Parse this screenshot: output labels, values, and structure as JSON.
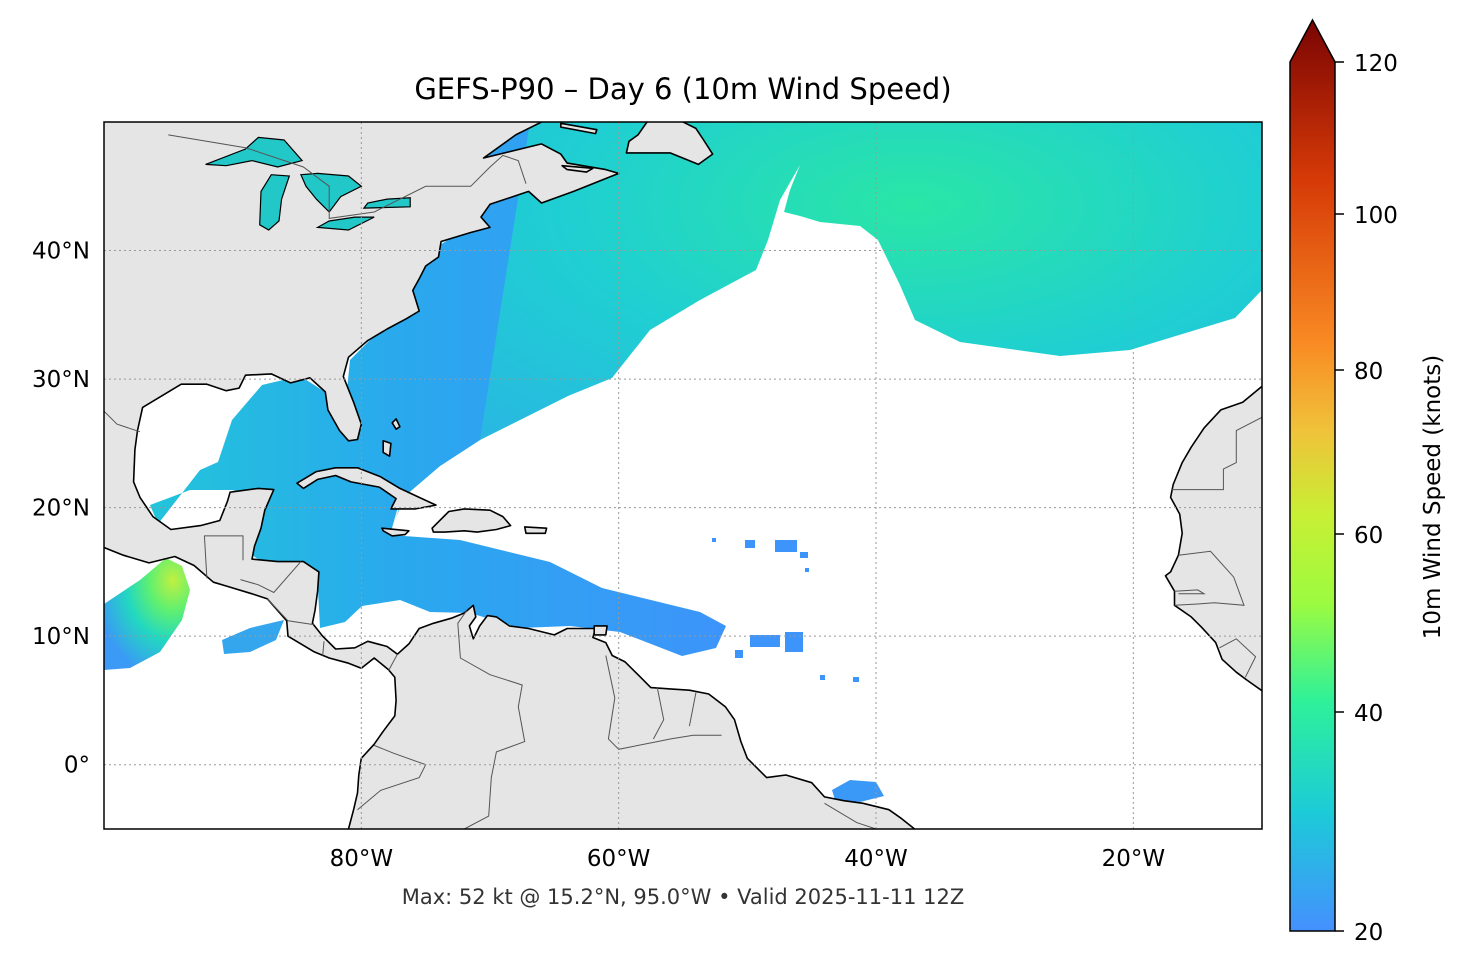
{
  "chart_data": {
    "type": "heatmap",
    "title": "GEFS-P90 – Day 6 (10m Wind Speed)",
    "footer": "Max: 52 kt @ 15.2°N, 95.0°W • Valid 2025-11-11 12Z",
    "projection": "PlateCarree",
    "lon_range": [
      -100,
      -10
    ],
    "lat_range": [
      -5,
      50
    ],
    "lon_ticks": [
      {
        "value": -80,
        "label": "80°W"
      },
      {
        "value": -60,
        "label": "60°W"
      },
      {
        "value": -40,
        "label": "40°W"
      },
      {
        "value": -20,
        "label": "20°W"
      }
    ],
    "lat_ticks": [
      {
        "value": 40,
        "label": "40°N"
      },
      {
        "value": 30,
        "label": "30°N"
      },
      {
        "value": 20,
        "label": "20°N"
      },
      {
        "value": 10,
        "label": "10°N"
      },
      {
        "value": 0,
        "label": "0°"
      }
    ],
    "grid": true,
    "max_point": {
      "value_kt": 52,
      "lat": 15.2,
      "lon": -95.0
    },
    "colorbar": {
      "label": "10m Wind Speed (knots)",
      "range": [
        20,
        120
      ],
      "extend": "max",
      "colormap": "turbo",
      "ticks": [
        {
          "value": 120,
          "label": "120"
        },
        {
          "value": 100,
          "label": "100"
        },
        {
          "value": 80,
          "label": "80"
        },
        {
          "value": 60,
          "label": "60"
        },
        {
          "value": 40,
          "label": "40"
        },
        {
          "value": 20,
          "label": "20"
        }
      ]
    },
    "colors": {
      "land": "#e5e5e5",
      "ocean": "#ffffff",
      "low_wind": "#4094f8",
      "mid_wind": "#1fc6da",
      "high_wind": "#a4fc3c"
    }
  }
}
